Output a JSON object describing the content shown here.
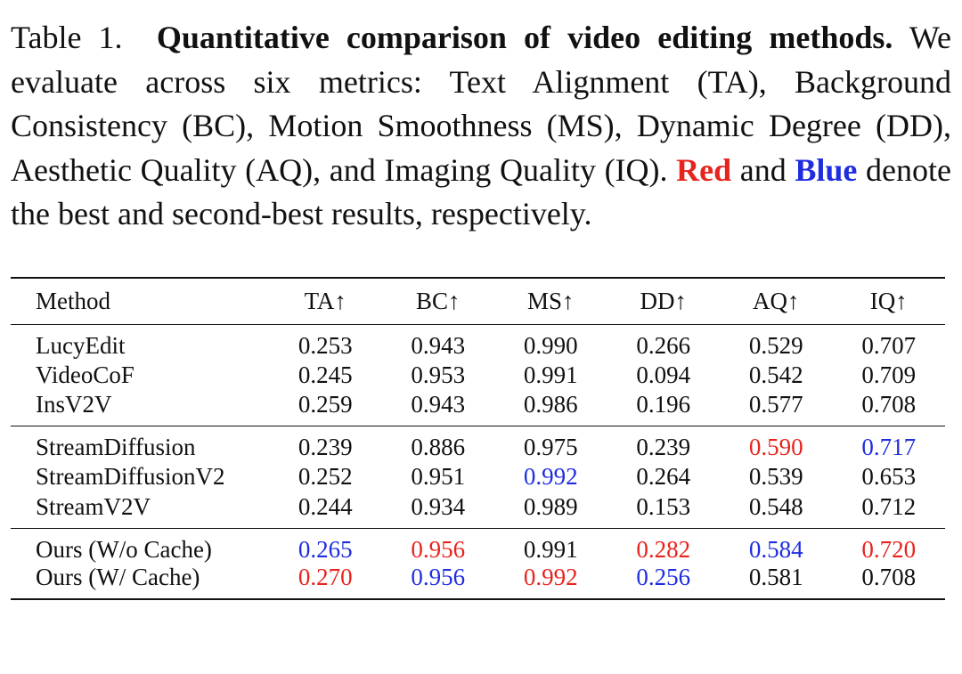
{
  "caption": {
    "label": "Table 1.",
    "title": "Quantitative comparison of video editing methods.",
    "text_1": "We evaluate across six metrics: Text Alignment (TA), Background Consistency (BC), Motion Smoothness (MS), Dynamic Degree (DD), Aesthetic Quality (AQ), and Imaging Quality (IQ).",
    "red_word": "Red",
    "text_and": "and",
    "blue_word": "Blue",
    "text_2": "denote the best and second-best results, respectively."
  },
  "table": {
    "headers": [
      "Method",
      "TA↑",
      "BC↑",
      "MS↑",
      "DD↑",
      "AQ↑",
      "IQ↑"
    ],
    "groups": [
      {
        "rows": [
          {
            "method": "LucyEdit",
            "values": [
              "0.253",
              "0.943",
              "0.990",
              "0.266",
              "0.529",
              "0.707"
            ]
          },
          {
            "method": "VideoCoF",
            "values": [
              "0.245",
              "0.953",
              "0.991",
              "0.094",
              "0.542",
              "0.709"
            ]
          },
          {
            "method": "InsV2V",
            "values": [
              "0.259",
              "0.943",
              "0.986",
              "0.196",
              "0.577",
              "0.708"
            ]
          }
        ]
      },
      {
        "rows": [
          {
            "method": "StreamDiffusion",
            "values": [
              "0.239",
              "0.886",
              "0.975",
              "0.239",
              "0.590",
              "0.717"
            ]
          },
          {
            "method": "StreamDiffusionV2",
            "values": [
              "0.252",
              "0.951",
              "0.992",
              "0.264",
              "0.539",
              "0.653"
            ]
          },
          {
            "method": "StreamV2V",
            "values": [
              "0.244",
              "0.934",
              "0.989",
              "0.153",
              "0.548",
              "0.712"
            ]
          }
        ]
      },
      {
        "rows": [
          {
            "method": "Ours (W/o Cache)",
            "values": [
              "0.265",
              "0.956",
              "0.991",
              "0.282",
              "0.584",
              "0.720"
            ]
          },
          {
            "method": "Ours (W/ Cache)",
            "values": [
              "0.270",
              "0.956",
              "0.992",
              "0.256",
              "0.581",
              "0.708"
            ]
          }
        ]
      }
    ],
    "colors": {
      "best": "#e8231d",
      "second": "#1f2de0"
    }
  }
}
